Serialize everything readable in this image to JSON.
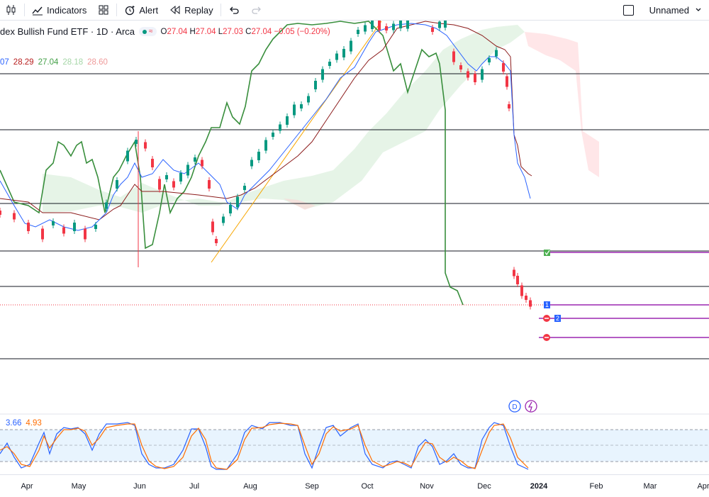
{
  "toolbar": {
    "indicators_label": "Indicators",
    "alert_label": "Alert",
    "replay_label": "Replay",
    "layout_name": "Unnamed"
  },
  "legend": {
    "title": "dex Bullish Fund ETF · 1D · Arca",
    "open_label": "O",
    "open": "27.04",
    "high_label": "H",
    "high": "27.04",
    "low_label": "L",
    "low": "27.03",
    "close_label": "C",
    "close": "27.04",
    "change": "−0.05 (−0.20%)"
  },
  "ichimoku_values": [
    {
      "text": "07",
      "color": "#2962ff"
    },
    {
      "text": "28.29",
      "color": "#b71c1c"
    },
    {
      "text": "27.04",
      "color": "#43a047"
    },
    {
      "text": "28.18",
      "color": "#a5d6a7"
    },
    {
      "text": "28.60",
      "color": "#ef9a9a"
    }
  ],
  "stoch_values": [
    {
      "text": "3.66",
      "color": "#2962ff"
    },
    {
      "text": "4.93",
      "color": "#ff6d00"
    }
  ],
  "order_badges": {
    "first": "1",
    "second": "2"
  },
  "event_badges": {
    "dividend": "D"
  },
  "xaxis_labels": [
    "Apr",
    "May",
    "Jun",
    "Jul",
    "Aug",
    "Sep",
    "Oct",
    "Nov",
    "Dec",
    "2024",
    "Feb",
    "Mar",
    "Apr"
  ],
  "colors": {
    "up": "#089981",
    "down": "#f23645",
    "accent": "#2962ff",
    "trend": "#f7a600",
    "order": "#9c27b0"
  }
}
